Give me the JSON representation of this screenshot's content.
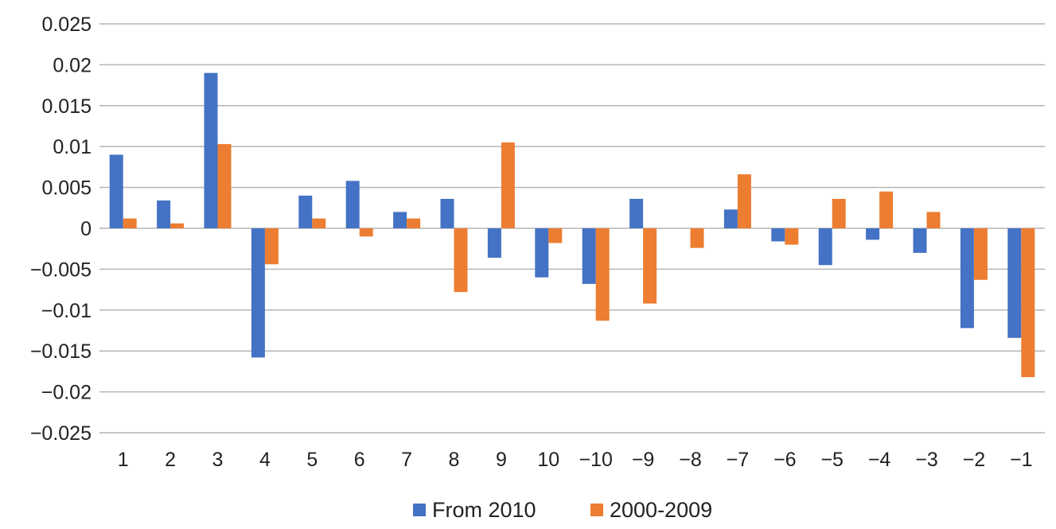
{
  "chart_data": {
    "type": "bar",
    "categories": [
      "1",
      "2",
      "3",
      "4",
      "5",
      "6",
      "7",
      "8",
      "9",
      "10",
      "−10",
      "−9",
      "−8",
      "−7",
      "−6",
      "−5",
      "−4",
      "−3",
      "−2",
      "−1"
    ],
    "series": [
      {
        "name": "From 2010",
        "color": "#4472c4",
        "values": [
          0.009,
          0.0034,
          0.019,
          -0.0158,
          0.004,
          0.0058,
          0.002,
          0.0036,
          -0.0036,
          -0.006,
          -0.0068,
          0.0036,
          0.0,
          0.0023,
          -0.0016,
          -0.0045,
          -0.0014,
          -0.003,
          -0.0122,
          -0.0134
        ]
      },
      {
        "name": "2000-2009",
        "color": "#ed7d31",
        "values": [
          0.0012,
          0.0006,
          0.0103,
          -0.0044,
          0.0012,
          -0.001,
          0.0012,
          -0.0078,
          0.0105,
          -0.0018,
          -0.0113,
          -0.0092,
          -0.0024,
          0.0066,
          -0.002,
          0.0036,
          0.0045,
          0.002,
          -0.0063,
          -0.0182
        ]
      }
    ],
    "yticks": [
      "0.025",
      "0.02",
      "0.015",
      "0.01",
      "0.005",
      "0",
      "−0.005",
      "−0.01",
      "−0.015",
      "−0.02",
      "−0.025"
    ],
    "ylim": [
      -0.025,
      0.025
    ],
    "grid": true,
    "legend_position": "bottom",
    "title": "",
    "xlabel": "",
    "ylabel": ""
  }
}
